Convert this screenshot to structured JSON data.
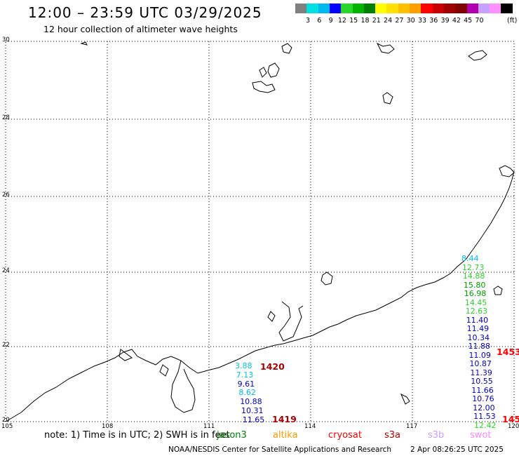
{
  "title": "12:00 – 23:59 UTC 03/29/2025",
  "subtitle": "12 hour collection of altimeter wave heights",
  "legend": {
    "unit": "(ft)",
    "colors": [
      "#808080",
      "#00e0e0",
      "#00b8f0",
      "#0000ff",
      "#2ad62a",
      "#00b400",
      "#008000",
      "#ffff00",
      "#ffe000",
      "#ffc000",
      "#ffa000",
      "#ff0000",
      "#c80000",
      "#a00000",
      "#800000",
      "#b000b0",
      "#c8a0ff",
      "#ff90ff",
      "#000000"
    ],
    "levels": [
      "3",
      "6",
      "9",
      "12",
      "15",
      "18",
      "21",
      "24",
      "27",
      "30",
      "33",
      "36",
      "39",
      "42",
      "45",
      "70"
    ]
  },
  "axes": {
    "x_ticks": [
      "105",
      "108",
      "111",
      "114",
      "117",
      "120"
    ],
    "y_ticks": [
      "30",
      "28",
      "26",
      "24",
      "22",
      "20"
    ]
  },
  "passes": [
    {
      "id": "1420",
      "label": "1420",
      "color": "#8b0000"
    },
    {
      "id": "1419",
      "label": "1419",
      "color": "#8b0000"
    },
    {
      "id": "1453",
      "label": "1453",
      "color": "#ff0000"
    },
    {
      "id": "145x",
      "label": "145",
      "color": "#ff0000"
    }
  ],
  "track_left": [
    {
      "v": "3.88",
      "c": "#00c8d8"
    },
    {
      "v": "7.13",
      "c": "#00c8d8"
    },
    {
      "v": "9.61",
      "c": "#0000cc"
    },
    {
      "v": "8.62",
      "c": "#00b8f0"
    },
    {
      "v": "10.88",
      "c": "#0000cc"
    },
    {
      "v": "10.31",
      "c": "#0000cc"
    },
    {
      "v": "11.65",
      "c": "#0000cc"
    }
  ],
  "track_right": [
    {
      "v": "8.44",
      "c": "#00b8f0"
    },
    {
      "v": "12.73",
      "c": "#2ad62a"
    },
    {
      "v": "14.88",
      "c": "#2ad62a"
    },
    {
      "v": "15.80",
      "c": "#00a000"
    },
    {
      "v": "16.98",
      "c": "#00a000"
    },
    {
      "v": "14.45",
      "c": "#2ad62a"
    },
    {
      "v": "12.63",
      "c": "#2ad62a"
    },
    {
      "v": "11.40",
      "c": "#0000cc"
    },
    {
      "v": "11.49",
      "c": "#0000cc"
    },
    {
      "v": "10.34",
      "c": "#0000cc"
    },
    {
      "v": "11.88",
      "c": "#0000cc"
    },
    {
      "v": "11.09",
      "c": "#0000cc"
    },
    {
      "v": "10.87",
      "c": "#0000cc"
    },
    {
      "v": "11.39",
      "c": "#0000cc"
    },
    {
      "v": "10.55",
      "c": "#0000cc"
    },
    {
      "v": "11.66",
      "c": "#0000cc"
    },
    {
      "v": "10.76",
      "c": "#0000cc"
    },
    {
      "v": "12.00",
      "c": "#0000cc"
    },
    {
      "v": "11.53",
      "c": "#0000cc"
    },
    {
      "v": "12.42",
      "c": "#2ad62a"
    }
  ],
  "footer": {
    "note": "note:  1) Time is in UTC;  2) SWH is in feet",
    "satellites": [
      {
        "name": "jason3",
        "color": "#008000"
      },
      {
        "name": "altika",
        "color": "#ff9900"
      },
      {
        "name": "cryosat",
        "color": "#ff0000"
      },
      {
        "name": "s3a",
        "color": "#aa0000"
      },
      {
        "name": "s3b",
        "color": "#c8a0ff"
      },
      {
        "name": "swot",
        "color": "#ff88ff"
      }
    ],
    "credit": "NOAA/NESDIS Center for Satellite Applications and Research",
    "datetime": "2 Apr 08:26:25 UTC 2025"
  }
}
